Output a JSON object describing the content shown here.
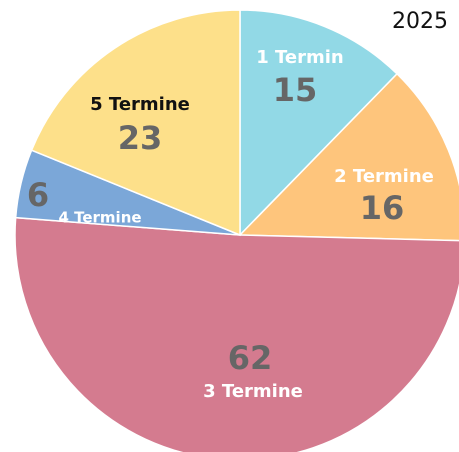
{
  "chart_data": {
    "type": "pie",
    "title": "2025",
    "categories": [
      "1 Termin",
      "2 Termine",
      "3 Termine",
      "4 Termine",
      "5 Termine"
    ],
    "values": [
      15,
      16,
      62,
      6,
      23
    ],
    "colors": [
      "#92d9e6",
      "#fec57c",
      "#d47b8f",
      "#7ba7d8",
      "#fde08a"
    ]
  }
}
